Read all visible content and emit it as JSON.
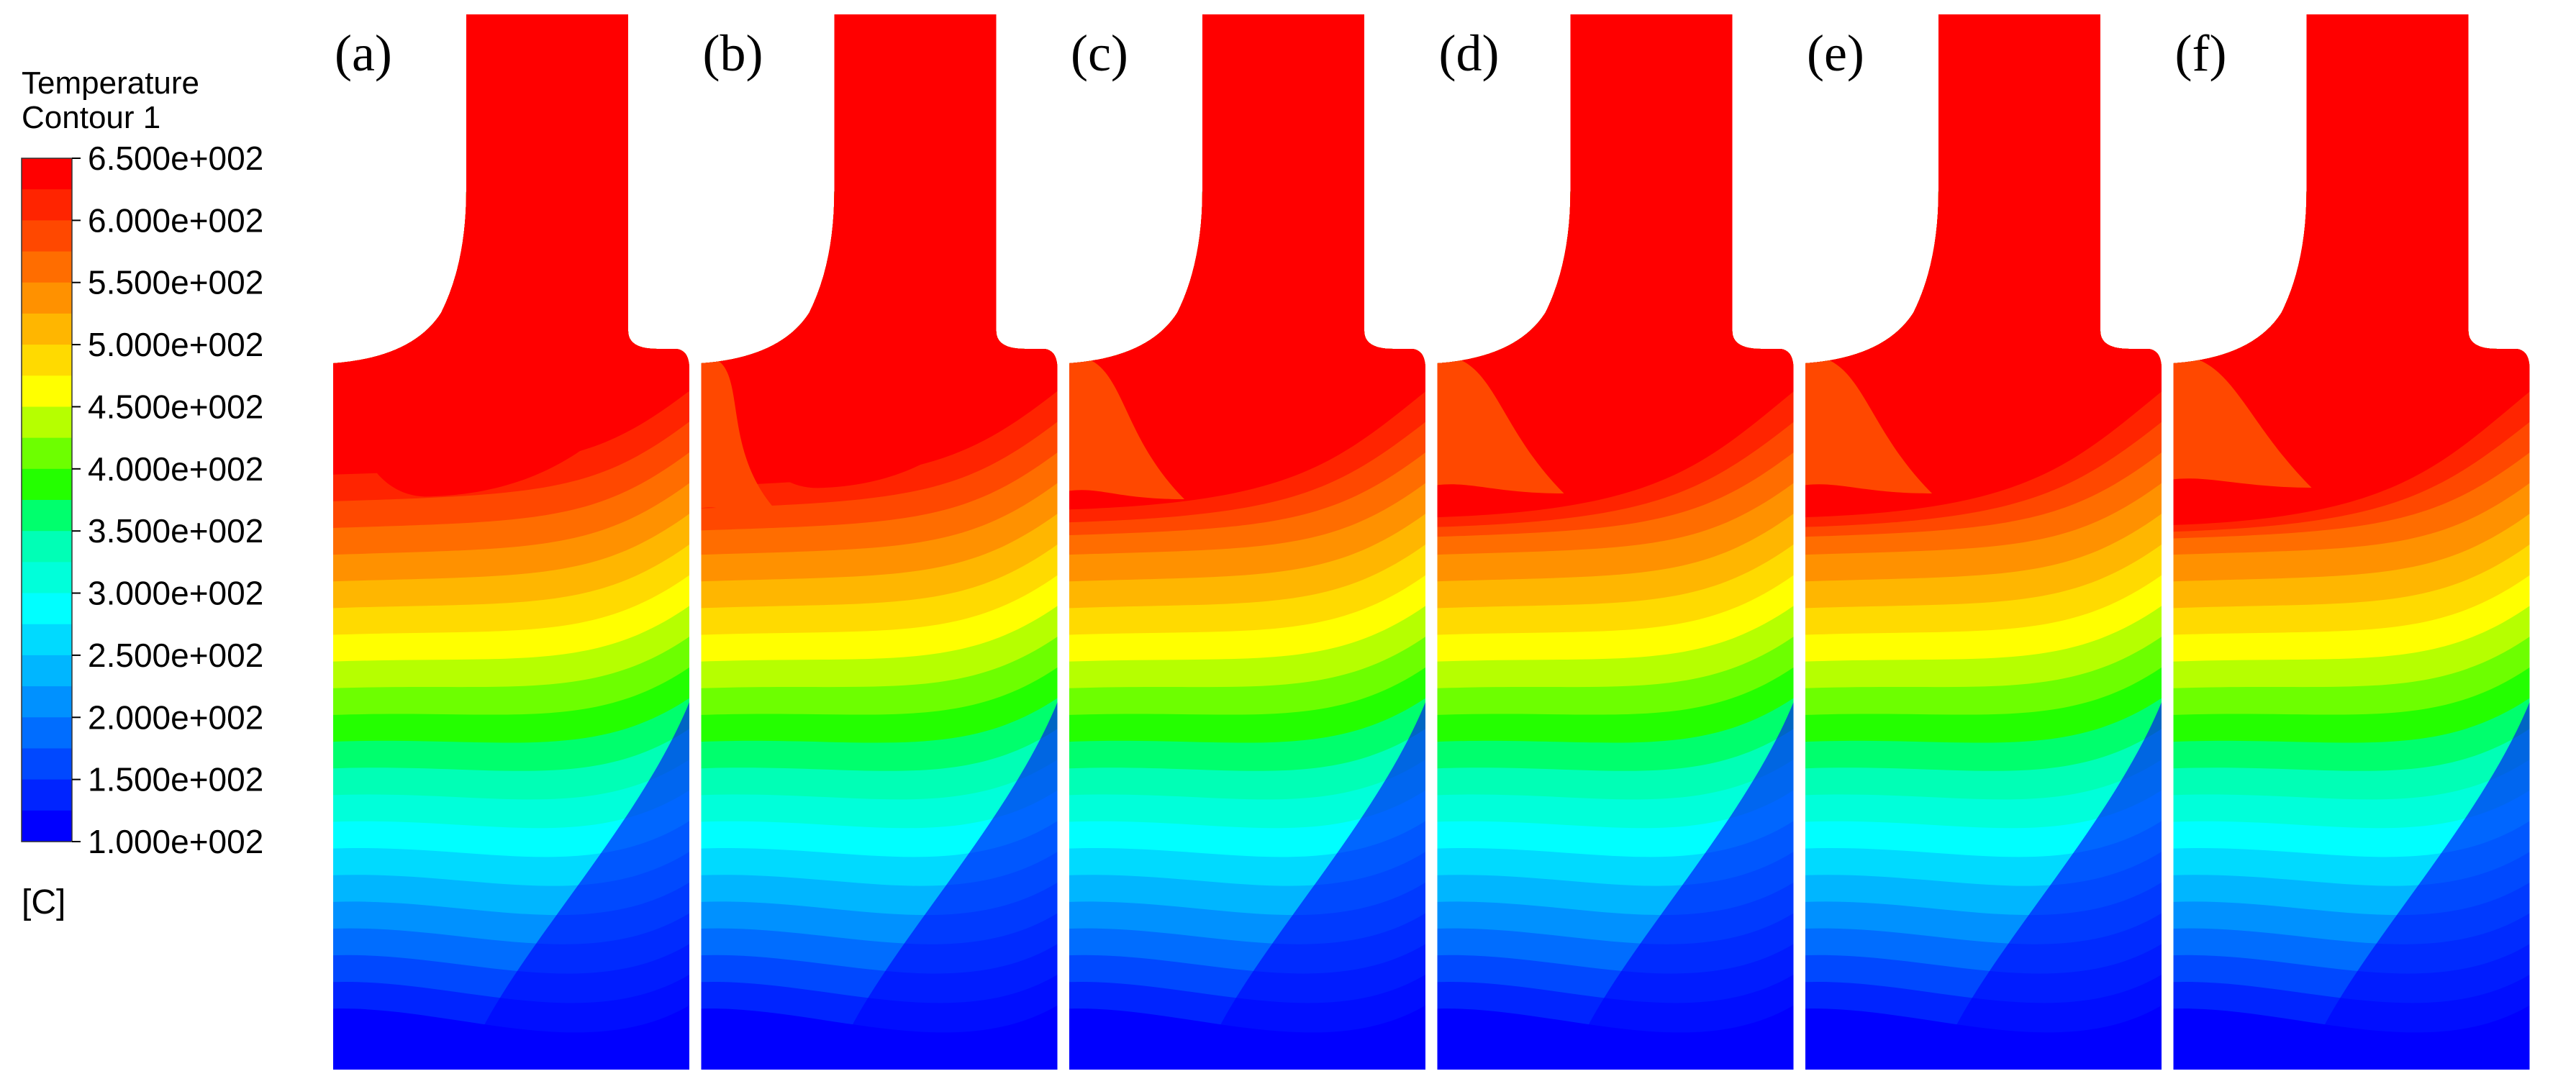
{
  "legend": {
    "title": "Temperature",
    "subtitle": "Contour 1",
    "unit": "[C]",
    "ticks": [
      "6.500e+002",
      "6.000e+002",
      "5.500e+002",
      "5.000e+002",
      "4.500e+002",
      "4.000e+002",
      "3.500e+002",
      "3.000e+002",
      "2.500e+002",
      "2.000e+002",
      "1.500e+002",
      "1.000e+002"
    ],
    "range": [
      100,
      650
    ],
    "levels": 22,
    "colors": [
      "#0000ff",
      "#0024ff",
      "#0048ff",
      "#006dff",
      "#0091ff",
      "#00b6ff",
      "#00daff",
      "#00ffff",
      "#00ffda",
      "#00ffb6",
      "#00ff6d",
      "#24ff00",
      "#6dff00",
      "#b6ff00",
      "#ffff00",
      "#ffda00",
      "#ffb600",
      "#ff9100",
      "#ff6d00",
      "#ff4800",
      "#ff2400",
      "#ff0000"
    ]
  },
  "panels": [
    {
      "label": "(a)",
      "hot_core_depth": 0.0,
      "red_bulge": 0.0
    },
    {
      "label": "(b)",
      "hot_core_depth": 0.15,
      "red_bulge": 0.2
    },
    {
      "label": "(c)",
      "hot_core_depth": 0.45,
      "red_bulge": 0.5
    },
    {
      "label": "(d)",
      "hot_core_depth": 0.55,
      "red_bulge": 0.6
    },
    {
      "label": "(e)",
      "hot_core_depth": 0.55,
      "red_bulge": 0.6
    },
    {
      "label": "(f)",
      "hot_core_depth": 0.65,
      "red_bulge": 0.7
    }
  ]
}
